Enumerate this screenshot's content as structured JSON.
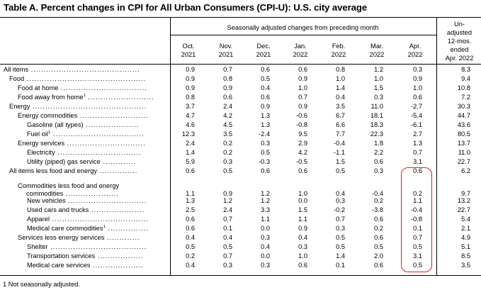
{
  "title": "Table A. Percent changes in CPI for All Urban Consumers (CPI-U): U.S. city average",
  "header": {
    "seasonal_label": "Seasonally adjusted changes from preceding month",
    "months": [
      {
        "m": "Oct.",
        "y": "2021"
      },
      {
        "m": "Nov.",
        "y": "2021"
      },
      {
        "m": "Dec.",
        "y": "2021"
      },
      {
        "m": "Jan.",
        "y": "2022"
      },
      {
        "m": "Feb.",
        "y": "2022"
      },
      {
        "m": "Mar.",
        "y": "2022"
      },
      {
        "m": "Apr.",
        "y": "2022"
      }
    ],
    "unadjusted_label": [
      "Un-",
      "adjusted",
      "12-mos.",
      "ended",
      "Apr. 2022"
    ]
  },
  "rows": [
    {
      "label": "All items",
      "sup": "",
      "indent": 0,
      "values": [
        "0.9",
        "0.7",
        "0.6",
        "0.6",
        "0.8",
        "1.2",
        "0.3",
        "8.3"
      ]
    },
    {
      "label": "Food",
      "sup": "",
      "indent": 1,
      "values": [
        "0.9",
        "0.8",
        "0.5",
        "0.9",
        "1.0",
        "1.0",
        "0.9",
        "9.4"
      ]
    },
    {
      "label": "Food at home",
      "sup": "",
      "indent": 2,
      "values": [
        "0.9",
        "0.9",
        "0.4",
        "1.0",
        "1.4",
        "1.5",
        "1.0",
        "10.8"
      ]
    },
    {
      "label": "Food away from home",
      "sup": "1",
      "indent": 2,
      "values": [
        "0.8",
        "0.6",
        "0.6",
        "0.7",
        "0.4",
        "0.3",
        "0.6",
        "7.2"
      ]
    },
    {
      "label": "Energy",
      "sup": "",
      "indent": 1,
      "values": [
        "3.7",
        "2.4",
        "0.9",
        "0.9",
        "3.5",
        "11.0",
        "-2.7",
        "30.3"
      ]
    },
    {
      "label": "Energy commodities",
      "sup": "",
      "indent": 2,
      "values": [
        "4.7",
        "4.2",
        "1.3",
        "-0.6",
        "6.7",
        "18.1",
        "-5.4",
        "44.7"
      ]
    },
    {
      "label": "Gasoline (all types)",
      "sup": "",
      "indent": 3,
      "values": [
        "4.6",
        "4.5",
        "1.3",
        "-0.8",
        "6.6",
        "18.3",
        "-6.1",
        "43.6"
      ]
    },
    {
      "label": "Fuel oil",
      "sup": "1",
      "indent": 3,
      "values": [
        "12.3",
        "3.5",
        "-2.4",
        "9.5",
        "7.7",
        "22.3",
        "2.7",
        "80.5"
      ]
    },
    {
      "label": "Energy services",
      "sup": "",
      "indent": 2,
      "values": [
        "2.4",
        "0.2",
        "0.3",
        "2.9",
        "-0.4",
        "1.8",
        "1.3",
        "13.7"
      ]
    },
    {
      "label": "Electricity",
      "sup": "",
      "indent": 3,
      "values": [
        "1.4",
        "0.2",
        "0.5",
        "4.2",
        "-1.1",
        "2.2",
        "0.7",
        "11.0"
      ]
    },
    {
      "label": "Utility (piped) gas service",
      "sup": "",
      "indent": 3,
      "values": [
        "5.9",
        "0.3",
        "-0.3",
        "-0.5",
        "1.5",
        "0.6",
        "3.1",
        "22.7"
      ]
    },
    {
      "label": "All items less food and energy",
      "sup": "",
      "indent": 1,
      "values": [
        "0.6",
        "0.5",
        "0.6",
        "0.6",
        "0.5",
        "0.3",
        "0.6",
        "6.2"
      ]
    },
    {
      "label": "Commodities less food and energy commodities",
      "sup": "",
      "indent": 2,
      "values": [
        "1.1",
        "0.9",
        "1.2",
        "1.0",
        "0.4",
        "-0.4",
        "0.2",
        "9.7"
      ]
    },
    {
      "label": "New vehicles",
      "sup": "",
      "indent": 3,
      "values": [
        "1.3",
        "1.2",
        "1.2",
        "0.0",
        "0.3",
        "0.2",
        "1.1",
        "13.2"
      ]
    },
    {
      "label": "Used cars and trucks",
      "sup": "",
      "indent": 3,
      "values": [
        "2.5",
        "2.4",
        "3.3",
        "1.5",
        "-0.2",
        "-3.8",
        "-0.4",
        "22.7"
      ]
    },
    {
      "label": "Apparel",
      "sup": "",
      "indent": 3,
      "values": [
        "0.6",
        "0.7",
        "1.1",
        "1.1",
        "0.7",
        "0.6",
        "-0.8",
        "5.4"
      ]
    },
    {
      "label": "Medical care commodities",
      "sup": "1",
      "indent": 3,
      "values": [
        "0.6",
        "0.1",
        "0.0",
        "0.9",
        "0.3",
        "0.2",
        "0.1",
        "2.1"
      ]
    },
    {
      "label": "Services less energy services",
      "sup": "",
      "indent": 2,
      "values": [
        "0.4",
        "0.4",
        "0.3",
        "0.4",
        "0.5",
        "0.6",
        "0.7",
        "4.9"
      ]
    },
    {
      "label": "Shelter",
      "sup": "",
      "indent": 3,
      "values": [
        "0.5",
        "0.5",
        "0.4",
        "0.3",
        "0.5",
        "0.5",
        "0.5",
        "5.1"
      ]
    },
    {
      "label": "Transportation services",
      "sup": "",
      "indent": 3,
      "values": [
        "0.2",
        "0.7",
        "0.0",
        "1.0",
        "1.4",
        "2.0",
        "3.1",
        "8.5"
      ]
    },
    {
      "label": "Medical care services",
      "sup": "",
      "indent": 3,
      "values": [
        "0.4",
        "0.3",
        "0.3",
        "0.6",
        "0.1",
        "0.6",
        "0.5",
        "3.5"
      ]
    }
  ],
  "footnote": "1  Not seasonally adjusted.",
  "highlight_color": "#e31c1c"
}
